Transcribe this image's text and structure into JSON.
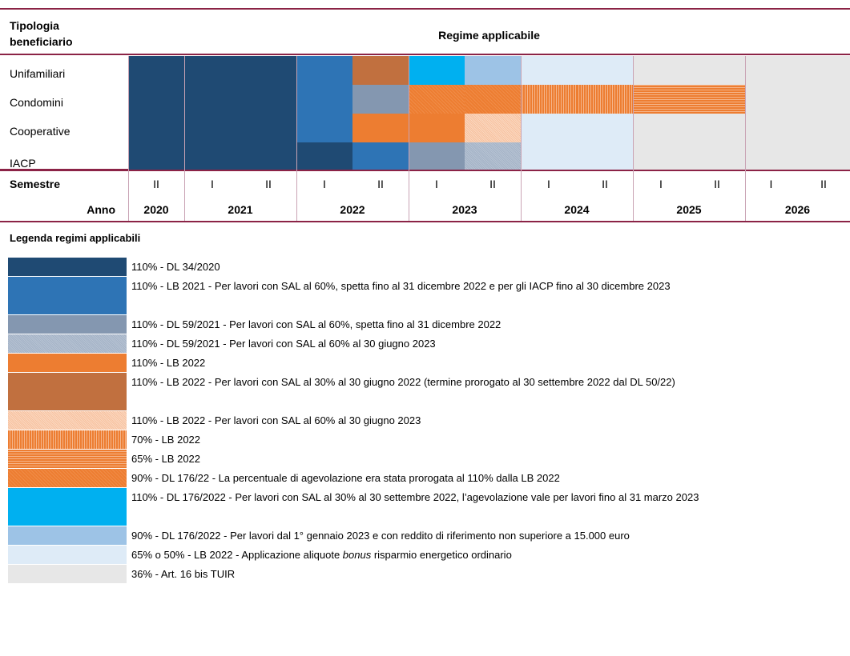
{
  "header": {
    "col1": "Tipologia beneficiario",
    "col2": "Regime applicabile"
  },
  "rows": [
    "Unifamiliari",
    "Condomini",
    "Cooperative",
    "IACP"
  ],
  "semester_label": "Semestre",
  "semesters": [
    "II",
    "I",
    "II",
    "I",
    "II",
    "I",
    "II",
    "I",
    "II",
    "I",
    "II",
    "I",
    "II"
  ],
  "year_label": "Anno",
  "years": [
    "2020",
    "2021",
    "2022",
    "2023",
    "2024",
    "2025",
    "2026"
  ],
  "legend": {
    "title": "Legenda regimi applicabili",
    "items": [
      {
        "label": "110% - DL 34/2020"
      },
      {
        "label": "110% - LB 2021 - Per lavori con SAL al 60%, spetta fino al 31 dicembre 2022 e per gli IACP fino al 30 dicembre 2023"
      },
      {
        "label": "110% - DL 59/2021 - Per lavori con SAL al 60%, spetta fino al 31 dicembre 2022"
      },
      {
        "label": "110% - DL 59/2021 - Per lavori con SAL al 60% al 30 giugno 2023"
      },
      {
        "label": "110% - LB 2022"
      },
      {
        "label": "110% - LB 2022 - Per lavori con SAL al 30% al 30 giugno 2022 (termine prorogato al 30 settembre 2022 dal DL 50/22)"
      },
      {
        "label": "110% - LB 2022 - Per lavori con SAL al 60% al 30 giugno 2023"
      },
      {
        "label": "70% - LB 2022"
      },
      {
        "label": "65% - LB 2022"
      },
      {
        "label": "90% - DL 176/22 - La percentuale di agevolazione era stata prorogata al 110% dalla LB 2022"
      },
      {
        "label": "110% - DL 176/2022 - Per lavori con SAL al 30% al 30 settembre 2022, l’agevolazione vale per lavori fino al 31 marzo 2023"
      },
      {
        "label": "90% - DL 176/2022 - Per lavori dal 1° gennaio 2023 e con reddito di riferimento non superiore a 15.000 euro"
      },
      {
        "label_parts": [
          "65% o 50% - LB 2022 - Applicazione aliquote ",
          "bonus",
          " risparmio energetico ordinario"
        ]
      },
      {
        "label": "36% - Art. 16 bis TUIR"
      }
    ]
  }
}
